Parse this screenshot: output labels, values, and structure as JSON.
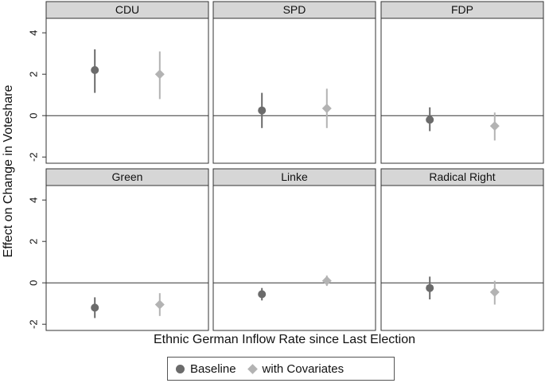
{
  "chart_data": {
    "type": "scatter",
    "xlabel": "Ethnic German Inflow Rate since Last Election",
    "ylabel": "Effect on Change in Voteshare",
    "ylim": [
      -2.3,
      4.7
    ],
    "yticks": [
      -2,
      0,
      2,
      4
    ],
    "ytick_labels": [
      "-2",
      "0",
      "2",
      "4"
    ],
    "series": [
      {
        "name": "Baseline",
        "marker": "circle",
        "color": "#6b6b6b"
      },
      {
        "name": "with Covariates",
        "marker": "diamond",
        "color": "#b3b3b3"
      }
    ],
    "panels": [
      {
        "title": "CDU",
        "baseline": {
          "estimate": 2.2,
          "ci": [
            1.1,
            3.2
          ]
        },
        "covariates": {
          "estimate": 2.0,
          "ci": [
            0.8,
            3.1
          ]
        }
      },
      {
        "title": "SPD",
        "baseline": {
          "estimate": 0.25,
          "ci": [
            -0.6,
            1.1
          ]
        },
        "covariates": {
          "estimate": 0.35,
          "ci": [
            -0.6,
            1.3
          ]
        }
      },
      {
        "title": "FDP",
        "baseline": {
          "estimate": -0.2,
          "ci": [
            -0.75,
            0.4
          ]
        },
        "covariates": {
          "estimate": -0.5,
          "ci": [
            -1.2,
            0.15
          ]
        }
      },
      {
        "title": "Green",
        "baseline": {
          "estimate": -1.2,
          "ci": [
            -1.7,
            -0.7
          ]
        },
        "covariates": {
          "estimate": -1.05,
          "ci": [
            -1.6,
            -0.5
          ]
        }
      },
      {
        "title": "Linke",
        "baseline": {
          "estimate": -0.55,
          "ci": [
            -0.85,
            -0.25
          ]
        },
        "covariates": {
          "estimate": 0.1,
          "ci": [
            -0.15,
            0.35
          ]
        }
      },
      {
        "title": "Radical Right",
        "baseline": {
          "estimate": -0.25,
          "ci": [
            -0.8,
            0.3
          ]
        },
        "covariates": {
          "estimate": -0.45,
          "ci": [
            -1.05,
            0.1
          ]
        }
      }
    ],
    "grid": false,
    "legend_position": "bottom"
  }
}
